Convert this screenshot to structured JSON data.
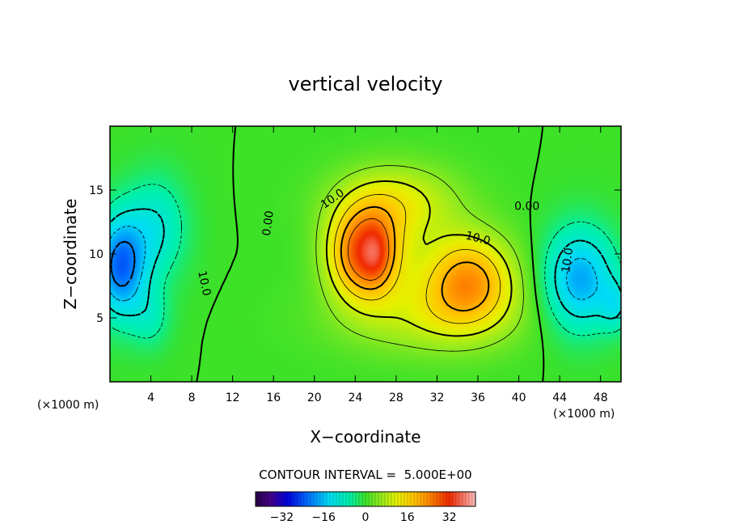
{
  "chart_data": {
    "type": "contour",
    "title": "vertical velocity",
    "xlabel": "X−coordinate",
    "ylabel": "Z−coordinate",
    "x_unit_left": "(×1000 m)",
    "x_unit_right": "(×1000 m)",
    "xlim": [
      0,
      50
    ],
    "ylim": [
      0,
      20
    ],
    "x_ticks": [
      {
        "value": 4,
        "label": "4"
      },
      {
        "value": 8,
        "label": "8"
      },
      {
        "value": 12,
        "label": "12"
      },
      {
        "value": 16,
        "label": "16"
      },
      {
        "value": 20,
        "label": "20"
      },
      {
        "value": 24,
        "label": "24"
      },
      {
        "value": 28,
        "label": "28"
      },
      {
        "value": 32,
        "label": "32"
      },
      {
        "value": 36,
        "label": "36"
      },
      {
        "value": 40,
        "label": "40"
      },
      {
        "value": 44,
        "label": "44"
      },
      {
        "value": 48,
        "label": "48"
      }
    ],
    "y_ticks": [
      {
        "value": 5,
        "label": "5"
      },
      {
        "value": 10,
        "label": "10"
      },
      {
        "value": 15,
        "label": "15"
      }
    ],
    "contour_interval_text": "CONTOUR INTERVAL =  5.000E+00",
    "contour_labels": [
      {
        "text": "0.00",
        "x": 15.5,
        "z": 12.4,
        "angle": -82
      },
      {
        "text": "10.0",
        "x": 21.8,
        "z": 14.3,
        "angle": -35
      },
      {
        "text": "10.0",
        "x": 36.0,
        "z": 11.2,
        "angle": 14
      },
      {
        "text": "0.00",
        "x": 40.8,
        "z": 13.7,
        "angle": 0
      },
      {
        "text": "10.0",
        "x": 44.8,
        "z": 9.5,
        "angle": -82
      },
      {
        "text": "10.0",
        "x": 9.2,
        "z": 7.7,
        "angle": 78
      }
    ],
    "colorbar": {
      "range": [
        -42,
        42
      ],
      "ticks": [
        {
          "value": -32,
          "label": "−32"
        },
        {
          "value": -16,
          "label": "−16"
        },
        {
          "value": 0,
          "label": "0"
        },
        {
          "value": 16,
          "label": "16"
        },
        {
          "value": 32,
          "label": "32"
        }
      ]
    },
    "field_features": [
      {
        "x": 1,
        "z": 9,
        "amp": -22,
        "sx": 2.5,
        "sz": 4
      },
      {
        "x": 4.5,
        "z": 12,
        "amp": -10,
        "sx": 3,
        "sz": 4
      },
      {
        "x": 4,
        "z": 5,
        "amp": -6,
        "sx": 2,
        "sz": 2.5
      },
      {
        "x": 25,
        "z": 10,
        "amp": 30,
        "sx": 3.5,
        "sz": 3.5
      },
      {
        "x": 26,
        "z": 10,
        "amp": 6,
        "sx": 1.2,
        "sz": 2
      },
      {
        "x": 35,
        "z": 8,
        "amp": 22,
        "sx": 4.5,
        "sz": 3.5
      },
      {
        "x": 28,
        "z": 14,
        "amp": 12,
        "sx": 6,
        "sz": 3
      },
      {
        "x": 31,
        "z": 5,
        "amp": 8,
        "sx": 9,
        "sz": 3
      },
      {
        "x": 46,
        "z": 8,
        "amp": -18,
        "sx": 3.5,
        "sz": 4
      },
      {
        "x": 49.5,
        "z": 6,
        "amp": -8,
        "sx": 1.5,
        "sz": 2
      }
    ],
    "colors": {
      "background_field": "#33dd33",
      "contour_line": "#000000"
    }
  }
}
